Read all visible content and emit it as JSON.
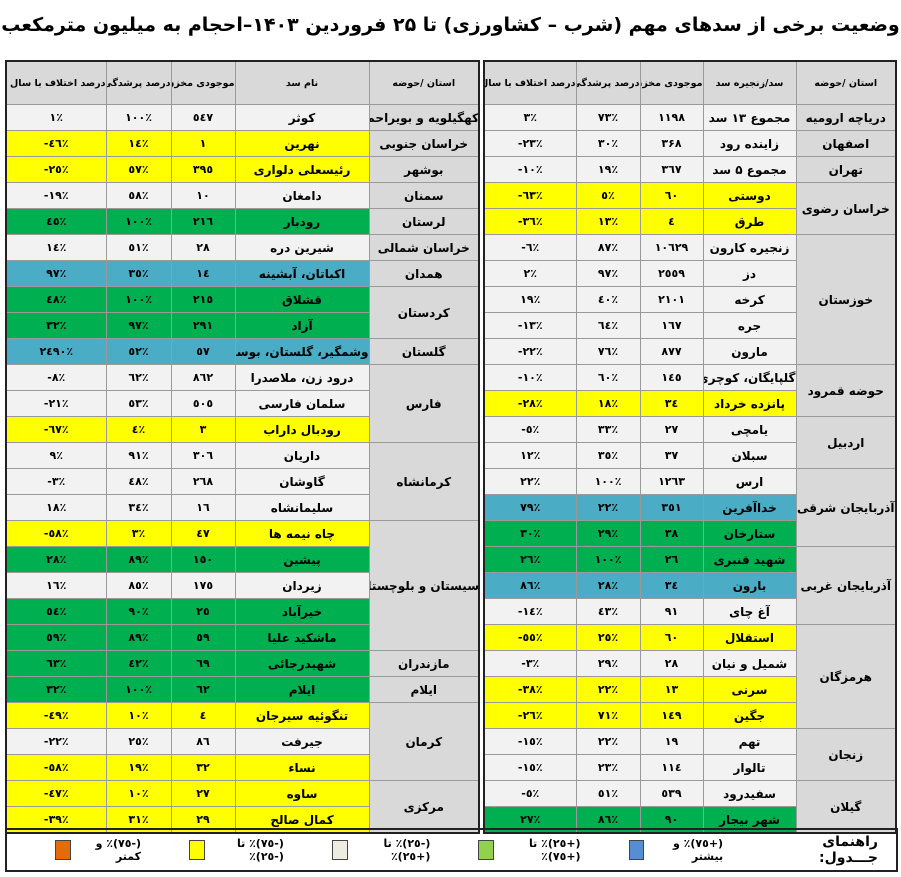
{
  "title": "وضعیت برخی از سدهای مهم (شرب – کشاورزی) تا ۲۵ فروردین ۱۴۰۳–احجام به میلیون مترمکعب",
  "colors": {
    "y": "#ffff00",
    "g": "#00b050",
    "b": "#4bacc6",
    "w": "#f2f2f2",
    "header": "#d9d9d9"
  },
  "tables": [
    {
      "id": "right",
      "headers": [
        "استان /حوضه",
        "سد/زنجیره سد",
        "موجودی مخزن",
        "درصد پرشدگی",
        "درصد اختلاف با سال قبل"
      ],
      "groups": [
        {
          "province": "دریاچه ارومیه",
          "rows": [
            {
              "dam": "مجموع ۱۳ سد",
              "volume": "۱۱۹۸",
              "fill": "۷۳٪",
              "diff": "۳٪",
              "status": "w"
            }
          ]
        },
        {
          "province": "اصفهان",
          "rows": [
            {
              "dam": "زاینده رود",
              "volume": "۳۶۸",
              "fill": "۳۰٪",
              "diff": "-۲۳٪",
              "status": "w"
            }
          ]
        },
        {
          "province": "تهران",
          "rows": [
            {
              "dam": "مجموع ۵ سد",
              "volume": "۳٦۷",
              "fill": "۱۹٪",
              "diff": "-۱۰٪",
              "status": "w"
            }
          ]
        },
        {
          "province": "خراسان رضوی",
          "rows": [
            {
              "dam": "دوستی",
              "volume": "٦۰",
              "fill": "٥٪",
              "diff": "-٦۳٪",
              "status": "y"
            },
            {
              "dam": "طرق",
              "volume": "٤",
              "fill": "۱۳٪",
              "diff": "-۳٦٪",
              "status": "y"
            }
          ]
        },
        {
          "province": "خوزستان",
          "rows": [
            {
              "dam": "زنجیره کارون",
              "volume": "۱۰٦۲۹",
              "fill": "۸۷٪",
              "diff": "-٦٪",
              "status": "w"
            },
            {
              "dam": "دز",
              "volume": "۲٥٥۹",
              "fill": "۹۷٪",
              "diff": "۲٪",
              "status": "w"
            },
            {
              "dam": "کرخه",
              "volume": "۲۱۰۱",
              "fill": "٤۰٪",
              "diff": "۱۹٪",
              "status": "w"
            },
            {
              "dam": "جره",
              "volume": "۱٦۷",
              "fill": "٦٤٪",
              "diff": "-۱۳٪",
              "status": "w"
            },
            {
              "dam": "مارون",
              "volume": "۸۷۷",
              "fill": "۷٦٪",
              "diff": "-۲۲٪",
              "status": "w"
            }
          ]
        },
        {
          "province": "حوضه قمرود",
          "rows": [
            {
              "dam": "گلپایگان، کوچری",
              "volume": "۱٤٥",
              "fill": "٦۰٪",
              "diff": "-۱۰٪",
              "status": "w"
            },
            {
              "dam": "پانزده خرداد",
              "volume": "۳٤",
              "fill": "۱۸٪",
              "diff": "-۲۸٪",
              "status": "y"
            }
          ]
        },
        {
          "province": "اردبیل",
          "rows": [
            {
              "dam": "یامچی",
              "volume": "۲۷",
              "fill": "۳۳٪",
              "diff": "-٥٪",
              "status": "w"
            },
            {
              "dam": "سبلان",
              "volume": "۳۷",
              "fill": "۳٥٪",
              "diff": "۱۲٪",
              "status": "w"
            }
          ]
        },
        {
          "province": "آذربایجان شرقی",
          "rows": [
            {
              "dam": "ارس",
              "volume": "۱۲٦۳",
              "fill": "۱۰۰٪",
              "diff": "۲۲٪",
              "status": "w"
            },
            {
              "dam": "خداآفرین",
              "volume": "۳٥۱",
              "fill": "۲۲٪",
              "diff": "۷۹٪",
              "status": "b"
            },
            {
              "dam": "ستارخان",
              "volume": "۳۸",
              "fill": "۲۹٪",
              "diff": "۳۰٪",
              "status": "g"
            }
          ]
        },
        {
          "province": "آذربایجان غربی",
          "rows": [
            {
              "dam": "شهید قنبری",
              "volume": "۲٦",
              "fill": "۱۰۰٪",
              "diff": "۲٦٪",
              "status": "g"
            },
            {
              "dam": "بارون",
              "volume": "۳٤",
              "fill": "۲۸٪",
              "diff": "۸٦٪",
              "status": "b"
            },
            {
              "dam": "آغ چای",
              "volume": "۹۱",
              "fill": "٤۳٪",
              "diff": "-۱٤٪",
              "status": "w"
            }
          ]
        },
        {
          "province": "هرمزگان",
          "rows": [
            {
              "dam": "استقلال",
              "volume": "٦۰",
              "fill": "۲٥٪",
              "diff": "-٥٥٪",
              "status": "y"
            },
            {
              "dam": "شمیل و نیان",
              "volume": "۲۸",
              "fill": "۲۹٪",
              "diff": "-۳٪",
              "status": "w"
            },
            {
              "dam": "سرنی",
              "volume": "۱۳",
              "fill": "۲۲٪",
              "diff": "-۳۸٪",
              "status": "y"
            },
            {
              "dam": "جگین",
              "volume": "۱٤۹",
              "fill": "۷۱٪",
              "diff": "-۲٦٪",
              "status": "y"
            }
          ]
        },
        {
          "province": "زنجان",
          "rows": [
            {
              "dam": "تهم",
              "volume": "۱۹",
              "fill": "۲۲٪",
              "diff": "-۱٥٪",
              "status": "w"
            },
            {
              "dam": "تالوار",
              "volume": "۱۱٤",
              "fill": "۲۳٪",
              "diff": "-۱٥٪",
              "status": "w"
            }
          ]
        },
        {
          "province": "گیلان",
          "rows": [
            {
              "dam": "سفیدرود",
              "volume": "٥۳۹",
              "fill": "٥۱٪",
              "diff": "-٥٪",
              "status": "w"
            },
            {
              "dam": "شهر بیجار",
              "volume": "۹۰",
              "fill": "۸٦٪",
              "diff": "۲۷٪",
              "status": "g"
            }
          ]
        }
      ]
    },
    {
      "id": "left",
      "headers": [
        "استان /حوضه",
        "نام سد",
        "موجودی مخزن",
        "درصد پرشدگی",
        "درصد اختلاف با سال قبل"
      ],
      "groups": [
        {
          "province": "کهگیلویه و بویراحمد",
          "rows": [
            {
              "dam": "کوثر",
              "volume": "٥٤۷",
              "fill": "۱۰۰٪",
              "diff": "۱٪",
              "status": "w"
            }
          ]
        },
        {
          "province": "خراسان جنوبی",
          "rows": [
            {
              "dam": "نهرین",
              "volume": "۱",
              "fill": "۱٤٪",
              "diff": "-٤٦٪",
              "status": "y"
            }
          ]
        },
        {
          "province": "بوشهر",
          "rows": [
            {
              "dam": "رئیسعلی دلواری",
              "volume": "۳۹٥",
              "fill": "٥۷٪",
              "diff": "-۲٥٪",
              "status": "y"
            }
          ]
        },
        {
          "province": "سمنان",
          "rows": [
            {
              "dam": "دامغان",
              "volume": "۱۰",
              "fill": "٥۸٪",
              "diff": "-۱۹٪",
              "status": "w"
            }
          ]
        },
        {
          "province": "لرستان",
          "rows": [
            {
              "dam": "رودبار",
              "volume": "۲۱٦",
              "fill": "۱۰۰٪",
              "diff": "٤٥٪",
              "status": "g"
            }
          ]
        },
        {
          "province": "خراسان شمالی",
          "rows": [
            {
              "dam": "شیرین دره",
              "volume": "۲۸",
              "fill": "٥۱٪",
              "diff": "۱٤٪",
              "status": "w"
            }
          ]
        },
        {
          "province": "همدان",
          "rows": [
            {
              "dam": "اکباتان، آبشینه",
              "volume": "۱٤",
              "fill": "۳٥٪",
              "diff": "۹۷٪",
              "status": "b"
            }
          ]
        },
        {
          "province": "کردستان",
          "rows": [
            {
              "dam": "قشلاق",
              "volume": "۲۱٥",
              "fill": "۱۰۰٪",
              "diff": "٤۸٪",
              "status": "g"
            },
            {
              "dam": "آزاد",
              "volume": "۲۹۱",
              "fill": "۹۷٪",
              "diff": "۳۲٪",
              "status": "g"
            }
          ]
        },
        {
          "province": "گلستان",
          "rows": [
            {
              "dam": "وشمگیر، گلستان، بوستان",
              "volume": "٥۷",
              "fill": "٥۲٪",
              "diff": "۲٤۹۰٪",
              "status": "b"
            }
          ]
        },
        {
          "province": "فارس",
          "rows": [
            {
              "dam": "درود زن، ملاصدرا",
              "volume": "۸٦۲",
              "fill": "٦۲٪",
              "diff": "-۸٪",
              "status": "w"
            },
            {
              "dam": "سلمان فارسی",
              "volume": "٥۰٥",
              "fill": "٥۳٪",
              "diff": "-۲۱٪",
              "status": "w"
            },
            {
              "dam": "رودبال داراب",
              "volume": "۳",
              "fill": "٤٪",
              "diff": "-٦۷٪",
              "status": "y"
            }
          ]
        },
        {
          "province": "کرمانشاه",
          "rows": [
            {
              "dam": "داریان",
              "volume": "۳۰٦",
              "fill": "۹۱٪",
              "diff": "۹٪",
              "status": "w"
            },
            {
              "dam": "گاوشان",
              "volume": "۲٦۸",
              "fill": "٤۸٪",
              "diff": "-۳٪",
              "status": "w"
            },
            {
              "dam": "سلیمانشاه",
              "volume": "۱٦",
              "fill": "۳٤٪",
              "diff": "۱۸٪",
              "status": "w"
            }
          ]
        },
        {
          "province": "سیستان و بلوچستان",
          "rows": [
            {
              "dam": "چاه نیمه ها",
              "volume": "٤۷",
              "fill": "۳٪",
              "diff": "-٥۸٪",
              "status": "y"
            },
            {
              "dam": "پیشین",
              "volume": "۱٥۰",
              "fill": "۸۹٪",
              "diff": "۲۸٪",
              "status": "g"
            },
            {
              "dam": "زیردان",
              "volume": "۱۷٥",
              "fill": "۸٥٪",
              "diff": "۱٦٪",
              "status": "w"
            },
            {
              "dam": "خیرآباد",
              "volume": "۲٥",
              "fill": "۹۰٪",
              "diff": "٥٤٪",
              "status": "g"
            },
            {
              "dam": "ماشکید علیا",
              "volume": "٥۹",
              "fill": "۸۹٪",
              "diff": "٥۹٪",
              "status": "g"
            }
          ]
        },
        {
          "province": "مازندران",
          "rows": [
            {
              "dam": "شهیدرجائی",
              "volume": "٦۹",
              "fill": "٤۲٪",
              "diff": "٦۳٪",
              "status": "g"
            }
          ]
        },
        {
          "province": "ایلام",
          "rows": [
            {
              "dam": "ایلام",
              "volume": "٦۲",
              "fill": "۱۰۰٪",
              "diff": "۳۲٪",
              "status": "g"
            }
          ]
        },
        {
          "province": "کرمان",
          "rows": [
            {
              "dam": "تنگوئیه سیرجان",
              "volume": "٤",
              "fill": "۱۰٪",
              "diff": "-٤۹٪",
              "status": "y"
            },
            {
              "dam": "جیرفت",
              "volume": "۸٦",
              "fill": "۲٥٪",
              "diff": "-۲۲٪",
              "status": "w"
            },
            {
              "dam": "نساء",
              "volume": "۳۲",
              "fill": "۱۹٪",
              "diff": "-٥۸٪",
              "status": "y"
            }
          ]
        },
        {
          "province": "مرکزی",
          "rows": [
            {
              "dam": "ساوه",
              "volume": "۲۷",
              "fill": "۱۰٪",
              "diff": "-٤۷٪",
              "status": "y"
            },
            {
              "dam": "کمال صالح",
              "volume": "۲۹",
              "fill": "۳۱٪",
              "diff": "-۳۹٪",
              "status": "y"
            }
          ]
        }
      ]
    }
  ],
  "legend": {
    "label": "راهنمای جـــدول:",
    "items": [
      {
        "text": "(+۷٥)٪ و بیشتر",
        "color": "#558ed5"
      },
      {
        "text": "(+۲٥)٪ تا (+۷٥)٪",
        "color": "#92d050"
      },
      {
        "text": "(-۲٥)٪ تا (+۲٥)٪",
        "color": "#eeece1"
      },
      {
        "text": "(-۷٥)٪ تا (-۲٥)٪",
        "color": "#ffff00"
      },
      {
        "text": "(-۷٥)٪ و کمتر",
        "color": "#e36c0a"
      }
    ]
  }
}
